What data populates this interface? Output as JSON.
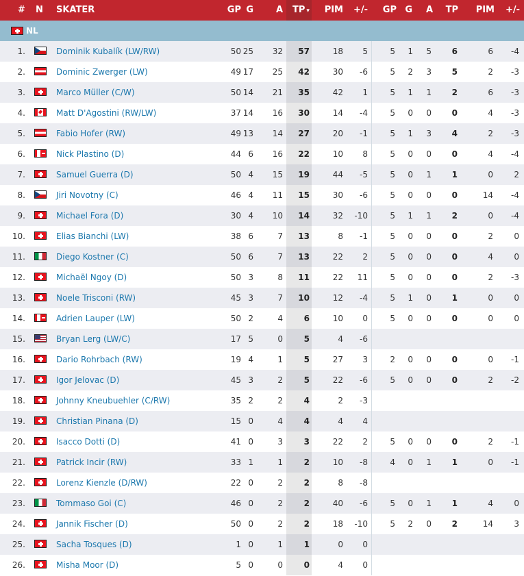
{
  "header": {
    "rank": "#",
    "nation": "N",
    "skater": "SKATER",
    "regular": {
      "gp": "GP",
      "g": "G",
      "a": "A",
      "tp": "TP",
      "pim": "PIM",
      "pm": "+/-"
    },
    "sort_indicator": "▾",
    "playoffs": {
      "gp": "GP",
      "g": "G",
      "a": "A",
      "tp": "TP",
      "pim": "PIM",
      "pm": "+/-"
    }
  },
  "colors": {
    "header": "#c1262e",
    "group_row": "#94bccf",
    "link": "#1c78ad"
  },
  "group": {
    "flag": "ch",
    "label": "NL"
  },
  "players": [
    {
      "rank": "1.",
      "flag": "cz",
      "name": "Dominik Kubalík (LW/RW)",
      "reg": [
        "50",
        "25",
        "32",
        "57",
        "18",
        "5"
      ],
      "po": [
        "5",
        "1",
        "5",
        "6",
        "6",
        "-4"
      ]
    },
    {
      "rank": "2.",
      "flag": "at",
      "name": "Dominic Zwerger (LW)",
      "reg": [
        "49",
        "17",
        "25",
        "42",
        "30",
        "-6"
      ],
      "po": [
        "5",
        "2",
        "3",
        "5",
        "2",
        "-3"
      ]
    },
    {
      "rank": "3.",
      "flag": "ch",
      "name": "Marco Müller (C/W)",
      "reg": [
        "50",
        "14",
        "21",
        "35",
        "42",
        "1"
      ],
      "po": [
        "5",
        "1",
        "1",
        "2",
        "6",
        "-3"
      ]
    },
    {
      "rank": "4.",
      "flag": "ca",
      "name": "Matt D'Agostini (RW/LW)",
      "reg": [
        "37",
        "14",
        "16",
        "30",
        "14",
        "-4"
      ],
      "po": [
        "5",
        "0",
        "0",
        "0",
        "4",
        "-3"
      ]
    },
    {
      "rank": "5.",
      "flag": "at",
      "name": "Fabio Hofer (RW)",
      "reg": [
        "49",
        "13",
        "14",
        "27",
        "20",
        "-1"
      ],
      "po": [
        "5",
        "1",
        "3",
        "4",
        "2",
        "-3"
      ]
    },
    {
      "rank": "6.",
      "flag": "cach",
      "name": "Nick Plastino (D)",
      "reg": [
        "44",
        "6",
        "16",
        "22",
        "10",
        "8"
      ],
      "po": [
        "5",
        "0",
        "0",
        "0",
        "4",
        "-4"
      ]
    },
    {
      "rank": "7.",
      "flag": "ch",
      "name": "Samuel Guerra (D)",
      "reg": [
        "50",
        "4",
        "15",
        "19",
        "44",
        "-5"
      ],
      "po": [
        "5",
        "0",
        "1",
        "1",
        "0",
        "2"
      ]
    },
    {
      "rank": "8.",
      "flag": "cz",
      "name": "Jiri Novotny (C)",
      "reg": [
        "46",
        "4",
        "11",
        "15",
        "30",
        "-6"
      ],
      "po": [
        "5",
        "0",
        "0",
        "0",
        "14",
        "-4"
      ]
    },
    {
      "rank": "9.",
      "flag": "ch",
      "name": "Michael Fora (D)",
      "reg": [
        "30",
        "4",
        "10",
        "14",
        "32",
        "-10"
      ],
      "po": [
        "5",
        "1",
        "1",
        "2",
        "0",
        "-4"
      ]
    },
    {
      "rank": "10.",
      "flag": "ch",
      "name": "Elias Bianchi (LW)",
      "reg": [
        "38",
        "6",
        "7",
        "13",
        "8",
        "-1"
      ],
      "po": [
        "5",
        "0",
        "0",
        "0",
        "2",
        "0"
      ]
    },
    {
      "rank": "11.",
      "flag": "it",
      "name": "Diego Kostner (C)",
      "reg": [
        "50",
        "6",
        "7",
        "13",
        "22",
        "2"
      ],
      "po": [
        "5",
        "0",
        "0",
        "0",
        "4",
        "0"
      ]
    },
    {
      "rank": "12.",
      "flag": "ch",
      "name": "Michaël Ngoy (D)",
      "reg": [
        "50",
        "3",
        "8",
        "11",
        "22",
        "11"
      ],
      "po": [
        "5",
        "0",
        "0",
        "0",
        "2",
        "-3"
      ]
    },
    {
      "rank": "13.",
      "flag": "ch",
      "name": "Noele Trisconi (RW)",
      "reg": [
        "45",
        "3",
        "7",
        "10",
        "12",
        "-4"
      ],
      "po": [
        "5",
        "1",
        "0",
        "1",
        "0",
        "0"
      ]
    },
    {
      "rank": "14.",
      "flag": "cach",
      "name": "Adrien Lauper (LW)",
      "reg": [
        "50",
        "2",
        "4",
        "6",
        "10",
        "0"
      ],
      "po": [
        "5",
        "0",
        "0",
        "0",
        "0",
        "0"
      ]
    },
    {
      "rank": "15.",
      "flag": "us",
      "name": "Bryan Lerg (LW/C)",
      "reg": [
        "17",
        "5",
        "0",
        "5",
        "4",
        "-6"
      ],
      "po": [
        "",
        "",
        "",
        "",
        "",
        ""
      ]
    },
    {
      "rank": "16.",
      "flag": "ch",
      "name": "Dario Rohrbach (RW)",
      "reg": [
        "19",
        "4",
        "1",
        "5",
        "27",
        "3"
      ],
      "po": [
        "2",
        "0",
        "0",
        "0",
        "0",
        "-1"
      ]
    },
    {
      "rank": "17.",
      "flag": "ch",
      "name": "Igor Jelovac (D)",
      "reg": [
        "45",
        "3",
        "2",
        "5",
        "22",
        "-6"
      ],
      "po": [
        "5",
        "0",
        "0",
        "0",
        "2",
        "-2"
      ]
    },
    {
      "rank": "18.",
      "flag": "ch",
      "name": "Johnny Kneubuehler (C/RW)",
      "reg": [
        "35",
        "2",
        "2",
        "4",
        "2",
        "-3"
      ],
      "po": [
        "",
        "",
        "",
        "",
        "",
        ""
      ]
    },
    {
      "rank": "19.",
      "flag": "ch",
      "name": "Christian Pinana (D)",
      "reg": [
        "15",
        "0",
        "4",
        "4",
        "4",
        "4"
      ],
      "po": [
        "",
        "",
        "",
        "",
        "",
        ""
      ]
    },
    {
      "rank": "20.",
      "flag": "ch",
      "name": "Isacco Dotti (D)",
      "reg": [
        "41",
        "0",
        "3",
        "3",
        "22",
        "2"
      ],
      "po": [
        "5",
        "0",
        "0",
        "0",
        "2",
        "-1"
      ]
    },
    {
      "rank": "21.",
      "flag": "ch",
      "name": "Patrick Incir (RW)",
      "reg": [
        "33",
        "1",
        "1",
        "2",
        "10",
        "-8"
      ],
      "po": [
        "4",
        "0",
        "1",
        "1",
        "0",
        "-1"
      ]
    },
    {
      "rank": "22.",
      "flag": "ch",
      "name": "Lorenz Kienzle (D/RW)",
      "reg": [
        "22",
        "0",
        "2",
        "2",
        "8",
        "-8"
      ],
      "po": [
        "",
        "",
        "",
        "",
        "",
        ""
      ]
    },
    {
      "rank": "23.",
      "flag": "it",
      "name": "Tommaso Goi (C)",
      "reg": [
        "46",
        "0",
        "2",
        "2",
        "40",
        "-6"
      ],
      "po": [
        "5",
        "0",
        "1",
        "1",
        "4",
        "0"
      ]
    },
    {
      "rank": "24.",
      "flag": "ch",
      "name": "Jannik Fischer (D)",
      "reg": [
        "50",
        "0",
        "2",
        "2",
        "18",
        "-10"
      ],
      "po": [
        "5",
        "2",
        "0",
        "2",
        "14",
        "3"
      ]
    },
    {
      "rank": "25.",
      "flag": "ch",
      "name": "Sacha Tosques (D)",
      "reg": [
        "1",
        "0",
        "1",
        "1",
        "0",
        "0"
      ],
      "po": [
        "",
        "",
        "",
        "",
        "",
        ""
      ]
    },
    {
      "rank": "26.",
      "flag": "ch",
      "name": "Misha Moor (D)",
      "reg": [
        "5",
        "0",
        "0",
        "0",
        "4",
        "0"
      ],
      "po": [
        "",
        "",
        "",
        "",
        "",
        ""
      ]
    }
  ]
}
